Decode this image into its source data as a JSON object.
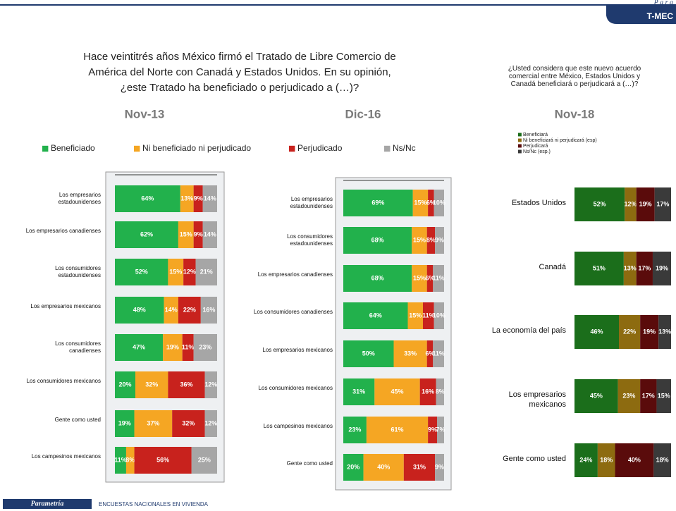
{
  "header": {
    "brand": "P a r a",
    "tab": "T-MEC"
  },
  "question_left": [
    "Hace veintitrés años México firmó el Tratado de Libre Comercio de",
    "América del Norte con Canadá y Estados Unidos. En su opinión,",
    "¿este Tratado ha beneficiado o perjudicado  a (…)?"
  ],
  "question_right": [
    "¿Usted considera que este nuevo acuerdo",
    "comercial entre México, Estados Unidos y",
    "Canadá beneficiará o perjudicará a (…)?"
  ],
  "footer": {
    "brand": "Parametría",
    "text": "ENCUESTAS NACIONALES EN VIVIENDA"
  },
  "chart_data": [
    {
      "type": "stacked_barh",
      "title": "Nov-13",
      "xlim": [
        0,
        100
      ],
      "categories": [
        "Los empresarios estadounidenses",
        "Los empresarios canadienses",
        "Los consumidores estadounidenses",
        "Los empresarios mexicanos",
        "Los consumidores canadienses",
        "Los consumidores mexicanos",
        "Gente como usted",
        "Los campesinos mexicanos"
      ],
      "series": [
        {
          "name": "Beneficiado",
          "color": "#22b14c",
          "values": [
            64,
            62,
            52,
            48,
            47,
            20,
            19,
            11
          ],
          "value_labels": [
            "64%",
            "62%",
            "52%",
            "48%",
            "47%",
            "20%",
            "19%",
            "11%"
          ]
        },
        {
          "name": "Ni beneficiado ni perjudicado",
          "color": "#f5a623",
          "values": [
            13,
            15,
            15,
            14,
            19,
            32,
            37,
            8
          ],
          "value_labels": [
            "13%",
            "15%",
            "15%",
            "14%",
            "19%",
            "32%",
            "37%",
            "8%"
          ]
        },
        {
          "name": "Perjudicado",
          "color": "#c8221d",
          "values": [
            9,
            9,
            12,
            22,
            11,
            36,
            32,
            56
          ],
          "value_labels": [
            "9%",
            "9%",
            "12%",
            "22%",
            "11%",
            "36%",
            "32%",
            "56%"
          ]
        },
        {
          "name": "Ns/Nc",
          "color": "#a6a6a6",
          "values": [
            14,
            14,
            21,
            16,
            23,
            12,
            12,
            25
          ],
          "value_labels": [
            "14%",
            "14%",
            "21%",
            "16%",
            "23%",
            "12%",
            "12%",
            "25%"
          ]
        }
      ]
    },
    {
      "type": "stacked_barh",
      "title": "Dic-16",
      "xlim": [
        0,
        100
      ],
      "categories": [
        "Los empresarios estadounidenses",
        "Los consumidores estadounidenses",
        "Los empresarios canadienses",
        "Los consumidores canadienses",
        "Los empresarios mexicanos",
        "Los consumidores mexicanos",
        "Los campesinos mexicanos",
        "Gente como usted"
      ],
      "series": [
        {
          "color": "#22b14c",
          "values": [
            69,
            68,
            68,
            64,
            50,
            31,
            23,
            20
          ],
          "value_labels": [
            "69%",
            "68%",
            "68%",
            "64%",
            "50%",
            "31%",
            "23%",
            "20%"
          ]
        },
        {
          "color": "#f5a623",
          "values": [
            15,
            15,
            15,
            15,
            33,
            45,
            61,
            40
          ],
          "value_labels": [
            "15%",
            "15%",
            "15%",
            "15%",
            "33%",
            "45%",
            "61%",
            "40%"
          ]
        },
        {
          "color": "#c8221d",
          "values": [
            6,
            8,
            6,
            11,
            6,
            16,
            9,
            31
          ],
          "value_labels": [
            "6%",
            "8%",
            "6%",
            "11%",
            "6%",
            "16%",
            "9%",
            "31%"
          ]
        },
        {
          "color": "#a6a6a6",
          "values": [
            10,
            9,
            11,
            10,
            11,
            8,
            7,
            9
          ],
          "value_labels": [
            "10%",
            "9%",
            "11%",
            "10%",
            "11%",
            "8%",
            "7%",
            "9%"
          ]
        }
      ]
    },
    {
      "type": "stacked_barh",
      "title": "Nov-18",
      "xlim": [
        0,
        100
      ],
      "categories": [
        "Estados Unidos",
        "Canadá",
        "La economía del país",
        "Los empresarios mexicanos",
        "Gente como usted"
      ],
      "series": [
        {
          "name": "Beneficiará",
          "color": "#1b6e1b",
          "values": [
            52,
            51,
            46,
            45,
            24
          ],
          "value_labels": [
            "52%",
            "51%",
            "46%",
            "45%",
            "24%"
          ]
        },
        {
          "name": "Ni beneficiará ni perjudicará (esp)",
          "color": "#8d6b10",
          "values": [
            12,
            13,
            22,
            23,
            18
          ],
          "value_labels": [
            "12%",
            "13%",
            "22%",
            "23%",
            "18%"
          ]
        },
        {
          "name": "Perjudicará",
          "color": "#5a0b0b",
          "values": [
            19,
            17,
            19,
            17,
            40
          ],
          "value_labels": [
            "19%",
            "17%",
            "19%",
            "17%",
            "40%"
          ]
        },
        {
          "name": "Ns/Nc (esp.)",
          "color": "#3a3a3a",
          "values": [
            17,
            19,
            13,
            15,
            18
          ],
          "value_labels": [
            "17%",
            "19%",
            "13%",
            "15%",
            "18%"
          ]
        }
      ]
    }
  ]
}
